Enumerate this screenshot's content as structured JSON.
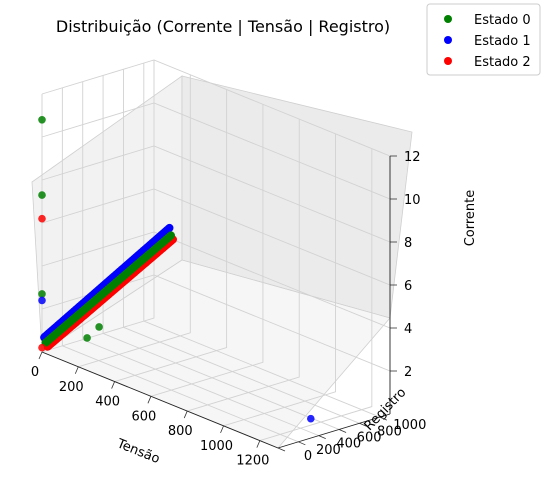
{
  "chart_data": {
    "type": "scatter",
    "projection": "3d",
    "title": "Distribuição (Corrente | Tensão | Registro)",
    "axes": {
      "x": {
        "label": "Tensão",
        "range": [
          0,
          1300
        ],
        "ticks": [
          0,
          200,
          400,
          600,
          800,
          1000,
          1200
        ]
      },
      "y": {
        "label": "Registro",
        "range": [
          0,
          1100
        ],
        "ticks": [
          0,
          200,
          400,
          600,
          800,
          1000
        ]
      },
      "z": {
        "label": "Corrente",
        "range": [
          0,
          12
        ],
        "ticks": [
          2,
          4,
          6,
          8,
          10,
          12
        ]
      }
    },
    "grid": true,
    "legend": {
      "position": "top-right"
    },
    "series": [
      {
        "name": "Estado 0",
        "color": "#008000",
        "trend": {
          "x": [
            20,
            150
          ],
          "y": [
            0,
            1000
          ],
          "z": [
            0.5,
            4.5
          ]
        },
        "outliers": [
          {
            "x": 0,
            "y": 0,
            "z": 10.8
          },
          {
            "x": 0,
            "y": 0,
            "z": 7.3
          },
          {
            "x": 0,
            "y": 0,
            "z": 2.7
          },
          {
            "x": 80,
            "y": 300,
            "z": 0.5
          },
          {
            "x": 90,
            "y": 400,
            "z": 0.9
          }
        ]
      },
      {
        "name": "Estado 1",
        "color": "#0000ff",
        "trend": {
          "x": [
            20,
            150
          ],
          "y": [
            0,
            1000
          ],
          "z": [
            0.6,
            4.7
          ]
        },
        "outliers": [
          {
            "x": 0,
            "y": 0,
            "z": 2.4
          },
          {
            "x": 1200,
            "y": 500,
            "z": 0.3
          }
        ]
      },
      {
        "name": "Estado 2",
        "color": "#ff0000",
        "trend": {
          "x": [
            20,
            150
          ],
          "y": [
            0,
            1000
          ],
          "z": [
            0.4,
            4.4
          ]
        },
        "outliers": [
          {
            "x": 0,
            "y": 0,
            "z": 6.2
          },
          {
            "x": 0,
            "y": 0,
            "z": 0.2
          }
        ]
      }
    ]
  }
}
